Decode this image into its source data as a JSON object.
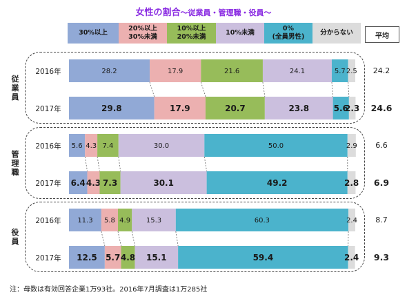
{
  "title": {
    "main": "女性の割合",
    "sub": "～従業員・管理職・役員～"
  },
  "avg_label": "平均",
  "footnote": "注：母数は有効回答企業1万93社。2016年7月調査は1万285社",
  "chart_data": {
    "type": "bar",
    "orientation": "horizontal",
    "stacked": true,
    "percent_stacked": true,
    "xlim": [
      0,
      100
    ],
    "legend_placement": "top",
    "categories_legend": [
      {
        "label_lines": [
          "30%以上"
        ],
        "color": "#91a9d6"
      },
      {
        "label_lines": [
          "20%以上",
          "30%未満"
        ],
        "color": "#ecb0b0"
      },
      {
        "label_lines": [
          "10%以上",
          "20%未満"
        ],
        "color": "#97bc5a"
      },
      {
        "label_lines": [
          "10%未満"
        ],
        "color": "#cbbfde"
      },
      {
        "label_lines": [
          "0%",
          "(全員男性)"
        ],
        "color": "#4bb3cc"
      },
      {
        "label_lines": [
          "分からない"
        ],
        "color": "#dcdcdc"
      }
    ],
    "groups": [
      {
        "label": "従業員",
        "rows": [
          {
            "year": "2016年",
            "values": [
              28.2,
              17.9,
              21.6,
              24.1,
              5.7,
              2.5
            ],
            "avg": "24.2",
            "bold": false
          },
          {
            "year": "2017年",
            "values": [
              29.8,
              17.9,
              20.7,
              23.8,
              5.6,
              2.3
            ],
            "avg": "24.6",
            "bold": true
          }
        ]
      },
      {
        "label": "管理職",
        "rows": [
          {
            "year": "2016年",
            "values": [
              5.6,
              4.3,
              7.4,
              30.0,
              50.0,
              2.9
            ],
            "avg": "6.6",
            "bold": false
          },
          {
            "year": "2017年",
            "values": [
              6.4,
              4.3,
              7.3,
              30.1,
              49.2,
              2.8
            ],
            "avg": "6.9",
            "bold": true
          }
        ]
      },
      {
        "label": "役員",
        "rows": [
          {
            "year": "2016年",
            "values": [
              11.3,
              5.8,
              4.9,
              15.3,
              60.3,
              2.4
            ],
            "avg": "8.7",
            "bold": false
          },
          {
            "year": "2017年",
            "values": [
              12.5,
              5.7,
              4.8,
              15.1,
              59.4,
              2.4
            ],
            "avg": "9.3",
            "bold": true
          }
        ]
      }
    ]
  }
}
